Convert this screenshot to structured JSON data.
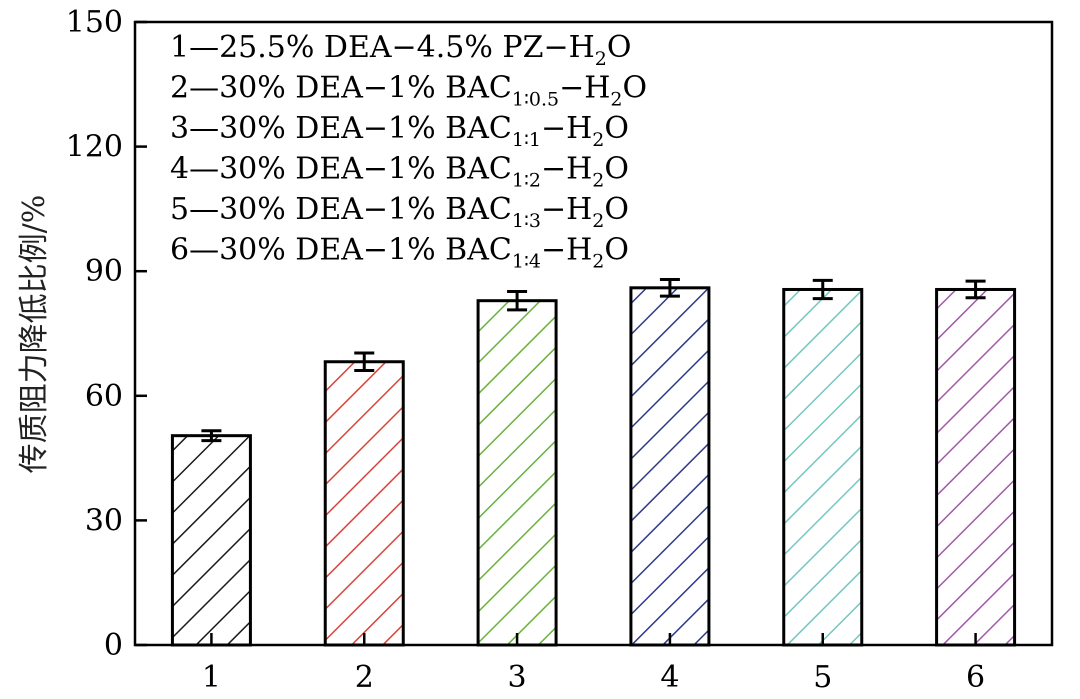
{
  "chart_data": {
    "type": "bar",
    "categories": [
      "1",
      "2",
      "3",
      "4",
      "5",
      "6"
    ],
    "values": [
      50.4,
      68.2,
      82.9,
      86.0,
      85.6,
      85.6
    ],
    "errors": [
      1.2,
      2.1,
      2.2,
      2.0,
      2.2,
      2.0
    ],
    "ylabel": "传质阻力降低比例/%",
    "xlabel": "",
    "ylim": [
      0,
      150
    ],
    "yticks": [
      0,
      30,
      60,
      90,
      120,
      150
    ],
    "grid": false,
    "legend_position": "top-left",
    "legend": [
      {
        "num": "1",
        "text": "—25.5% DEA−4.5% PZ−H",
        "sub": "",
        "sub2": "2",
        "tail": "O"
      },
      {
        "num": "2",
        "text": "—30% DEA−1% BAC",
        "sub": "1∶0.5",
        "mid": "−H",
        "sub2": "2",
        "tail": "O"
      },
      {
        "num": "3",
        "text": "—30% DEA−1% BAC",
        "sub": "1∶1",
        "mid": "−H",
        "sub2": "2",
        "tail": "O"
      },
      {
        "num": "4",
        "text": "—30% DEA−1% BAC",
        "sub": "1∶2",
        "mid": "−H",
        "sub2": "2",
        "tail": "O"
      },
      {
        "num": "5",
        "text": "—30% DEA−1% BAC",
        "sub": "1∶3",
        "mid": "−H",
        "sub2": "2",
        "tail": "O"
      },
      {
        "num": "6",
        "text": "—30% DEA−1% BAC",
        "sub": "1∶4",
        "mid": "−H",
        "sub2": "2",
        "tail": "O"
      }
    ],
    "hatch_colors": [
      "#1a1a1a",
      "#d9443a",
      "#6ab23c",
      "#2f3a86",
      "#74c7c0",
      "#a05aa6"
    ]
  }
}
